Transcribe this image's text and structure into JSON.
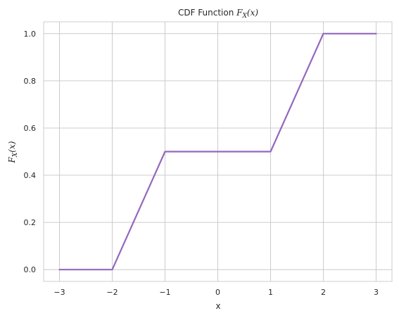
{
  "chart_data": {
    "type": "line",
    "title": "CDF Function ",
    "title_math": "F",
    "title_math_sub": "X",
    "title_math_tail": "(x)",
    "xlabel": "x",
    "ylabel_math": "F",
    "ylabel_math_sub": "X",
    "ylabel_math_tail": "(x)",
    "xlim": [
      -3.3,
      3.3
    ],
    "ylim": [
      -0.05,
      1.05
    ],
    "xticks": [
      -3,
      -2,
      -1,
      0,
      1,
      2,
      3
    ],
    "xtick_labels": [
      "−3",
      "−2",
      "−1",
      "0",
      "1",
      "2",
      "3"
    ],
    "yticks": [
      0.0,
      0.2,
      0.4,
      0.6,
      0.8,
      1.0
    ],
    "ytick_labels": [
      "0.0",
      "0.2",
      "0.4",
      "0.6",
      "0.8",
      "1.0"
    ],
    "grid": true,
    "series": [
      {
        "color": "#9467bd",
        "x": [
          -3,
          -2,
          -1,
          1,
          2,
          3
        ],
        "y": [
          0.0,
          0.0,
          0.5,
          0.5,
          1.0,
          1.0
        ]
      }
    ]
  }
}
